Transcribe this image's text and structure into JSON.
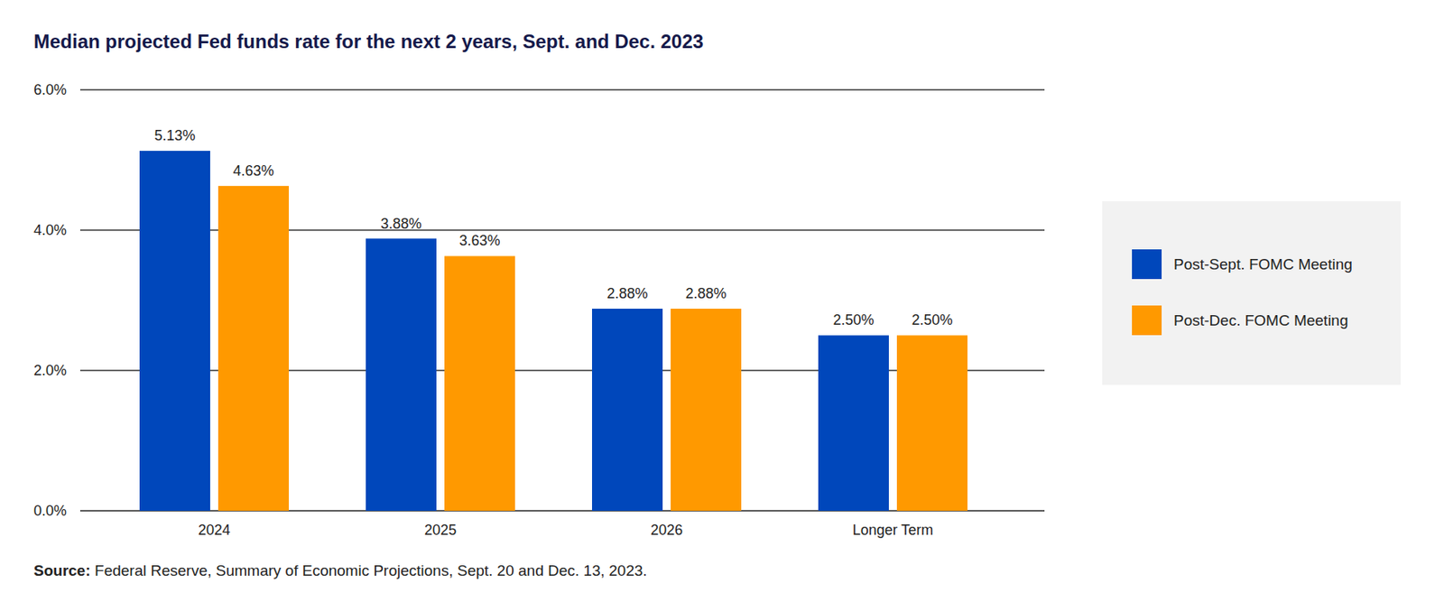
{
  "chart_data": {
    "type": "bar",
    "title": "Median projected Fed funds rate for the next 2 years, Sept. and Dec. 2023",
    "source": "Source: Federal Reserve, Summary of Economic Projections, Sept. 20 and Dec. 13, 2023.",
    "categories": [
      "2024",
      "2025",
      "2026",
      "Longer Term"
    ],
    "series": [
      {
        "name": "Post-Sept. FOMC Meeting",
        "color": "#0047bb",
        "values": [
          5.13,
          3.88,
          2.88,
          2.5
        ],
        "value_labels": [
          "5.13%",
          "3.88%",
          "2.88%",
          "2.50%"
        ]
      },
      {
        "name": "Post-Dec. FOMC Meeting",
        "color": "#ff9900",
        "values": [
          4.63,
          3.63,
          2.88,
          2.5
        ],
        "value_labels": [
          "4.63%",
          "3.63%",
          "2.88%",
          "2.50%"
        ]
      }
    ],
    "ylim": [
      0,
      6
    ],
    "yticks": [
      {
        "value": 0,
        "label": "0.0%"
      },
      {
        "value": 2,
        "label": "2.0%"
      },
      {
        "value": 4,
        "label": "4.0%"
      },
      {
        "value": 6,
        "label": "6.0%"
      }
    ],
    "grid": true,
    "data_labels": true,
    "legend": "right"
  }
}
